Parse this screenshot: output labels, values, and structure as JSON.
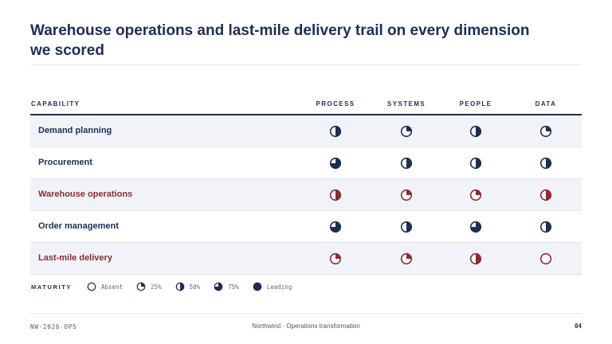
{
  "title": "Warehouse operations and last-mile delivery trail on every dimension we scored",
  "colors": {
    "navy": "#1c2f52",
    "weak": "#8c2c33",
    "shade": "#f1f3f8"
  },
  "table": {
    "capability_header": "CAPABILITY",
    "columns": [
      "PROCESS",
      "SYSTEMS",
      "PEOPLE",
      "DATA"
    ],
    "rows": [
      {
        "label": "Demand planning",
        "weak": false,
        "scores": [
          50,
          25,
          50,
          25
        ]
      },
      {
        "label": "Procurement",
        "weak": false,
        "scores": [
          75,
          50,
          50,
          50
        ]
      },
      {
        "label": "Warehouse operations",
        "weak": true,
        "scores": [
          50,
          25,
          25,
          50
        ]
      },
      {
        "label": "Order management",
        "weak": false,
        "scores": [
          75,
          50,
          75,
          50
        ]
      },
      {
        "label": "Last-mile delivery",
        "weak": true,
        "scores": [
          25,
          25,
          50,
          0
        ]
      }
    ]
  },
  "legend": {
    "title": "MATURITY",
    "items": [
      {
        "label": "Absent",
        "level": 0
      },
      {
        "label": "25%",
        "level": 25
      },
      {
        "label": "50%",
        "level": 50
      },
      {
        "label": "75%",
        "level": 75
      },
      {
        "label": "Leading",
        "level": 100
      }
    ]
  },
  "footer": {
    "code": "NW-2026-OPS",
    "project": "Northwind · Operations transformation",
    "page": "04"
  }
}
